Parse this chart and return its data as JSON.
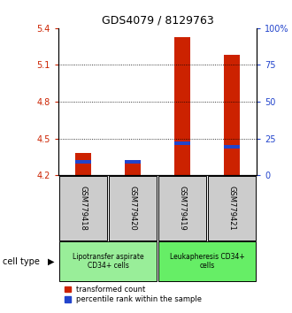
{
  "title": "GDS4079 / 8129763",
  "samples": [
    "GSM779418",
    "GSM779420",
    "GSM779419",
    "GSM779421"
  ],
  "red_values": [
    4.38,
    4.3,
    5.33,
    5.18
  ],
  "blue_values": [
    4.31,
    4.31,
    4.46,
    4.43
  ],
  "ylim_left": [
    4.2,
    5.4
  ],
  "ylim_right": [
    0,
    100
  ],
  "yticks_left": [
    4.2,
    4.5,
    4.8,
    5.1,
    5.4
  ],
  "yticks_right": [
    0,
    25,
    50,
    75,
    100
  ],
  "ytick_labels_left": [
    "4.2",
    "4.5",
    "4.8",
    "5.1",
    "5.4"
  ],
  "ytick_labels_right": [
    "0",
    "25",
    "50",
    "75",
    "100%"
  ],
  "red_color": "#cc2200",
  "blue_color": "#2244cc",
  "bar_width": 0.32,
  "groups": [
    {
      "label": "Lipotransfer aspirate\nCD34+ cells",
      "color": "#99ee99",
      "samples": [
        0,
        1
      ]
    },
    {
      "label": "Leukapheresis CD34+\ncells",
      "color": "#66ee66",
      "samples": [
        2,
        3
      ]
    }
  ],
  "legend_red": "transformed count",
  "legend_blue": "percentile rank within the sample",
  "cell_type_label": "cell type",
  "background_color": "#ffffff",
  "plot_bg": "#ffffff",
  "sample_box_color": "#cccccc"
}
